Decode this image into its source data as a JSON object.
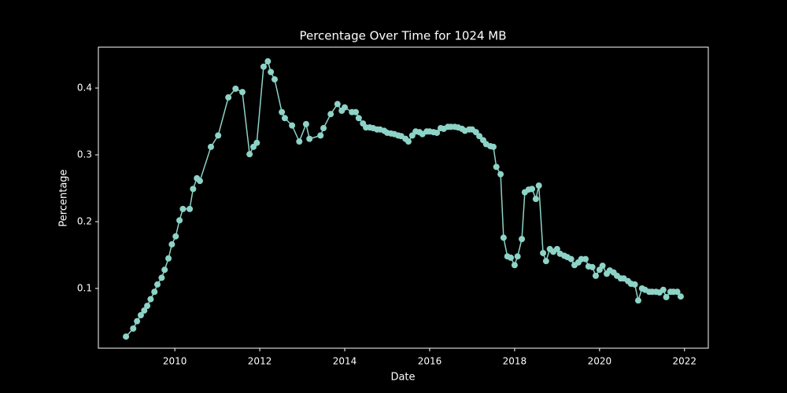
{
  "chart_data": {
    "type": "line",
    "title": "Percentage Over Time for 1024 MB",
    "x_label": "Date",
    "y_label": "Percentage",
    "x": [
      2008.85,
      2009.02,
      2009.11,
      2009.2,
      2009.28,
      2009.35,
      2009.43,
      2009.52,
      2009.59,
      2009.69,
      2009.76,
      2009.85,
      2009.93,
      2010.02,
      2010.11,
      2010.19,
      2010.35,
      2010.43,
      2010.52,
      2010.59,
      2010.85,
      2011.02,
      2011.26,
      2011.43,
      2011.59,
      2011.76,
      2011.85,
      2011.93,
      2012.09,
      2012.19,
      2012.26,
      2012.35,
      2012.52,
      2012.59,
      2012.76,
      2012.93,
      2013.09,
      2013.17,
      2013.43,
      2013.5,
      2013.67,
      2013.83,
      2013.93,
      2014.0,
      2014.17,
      2014.26,
      2014.33,
      2014.43,
      2014.5,
      2014.59,
      2014.67,
      2014.76,
      2014.83,
      2014.93,
      2015.0,
      2015.09,
      2015.17,
      2015.26,
      2015.33,
      2015.43,
      2015.5,
      2015.59,
      2015.67,
      2015.76,
      2015.83,
      2015.93,
      2016.0,
      2016.09,
      2016.17,
      2016.26,
      2016.33,
      2016.43,
      2016.5,
      2016.59,
      2016.67,
      2016.76,
      2016.83,
      2016.93,
      2017.0,
      2017.09,
      2017.17,
      2017.26,
      2017.33,
      2017.43,
      2017.5,
      2017.57,
      2017.67,
      2017.74,
      2017.83,
      2017.91,
      2018.0,
      2018.07,
      2018.17,
      2018.24,
      2018.33,
      2018.41,
      2018.5,
      2018.57,
      2018.67,
      2018.74,
      2018.83,
      2018.91,
      2019.0,
      2019.07,
      2019.17,
      2019.24,
      2019.33,
      2019.41,
      2019.5,
      2019.57,
      2019.67,
      2019.74,
      2019.83,
      2019.91,
      2020.0,
      2020.07,
      2020.17,
      2020.24,
      2020.33,
      2020.41,
      2020.5,
      2020.57,
      2020.67,
      2020.74,
      2020.83,
      2020.91,
      2021.0,
      2021.07,
      2021.17,
      2021.24,
      2021.33,
      2021.41,
      2021.5,
      2021.57,
      2021.67,
      2021.74,
      2021.83,
      2021.91
    ],
    "values": [
      0.028,
      0.04,
      0.051,
      0.06,
      0.067,
      0.074,
      0.084,
      0.095,
      0.106,
      0.116,
      0.128,
      0.145,
      0.166,
      0.178,
      0.202,
      0.219,
      0.219,
      0.249,
      0.265,
      0.261,
      0.312,
      0.329,
      0.386,
      0.399,
      0.394,
      0.301,
      0.312,
      0.318,
      0.432,
      0.44,
      0.424,
      0.413,
      0.364,
      0.355,
      0.344,
      0.32,
      0.346,
      0.324,
      0.329,
      0.34,
      0.361,
      0.376,
      0.366,
      0.371,
      0.364,
      0.364,
      0.355,
      0.347,
      0.341,
      0.341,
      0.34,
      0.338,
      0.338,
      0.336,
      0.333,
      0.332,
      0.331,
      0.329,
      0.328,
      0.324,
      0.32,
      0.329,
      0.335,
      0.334,
      0.331,
      0.335,
      0.335,
      0.334,
      0.333,
      0.34,
      0.339,
      0.342,
      0.342,
      0.342,
      0.341,
      0.339,
      0.336,
      0.338,
      0.338,
      0.334,
      0.328,
      0.322,
      0.316,
      0.313,
      0.312,
      0.282,
      0.271,
      0.176,
      0.148,
      0.146,
      0.135,
      0.148,
      0.174,
      0.244,
      0.248,
      0.249,
      0.234,
      0.254,
      0.153,
      0.141,
      0.159,
      0.155,
      0.159,
      0.152,
      0.149,
      0.147,
      0.144,
      0.135,
      0.139,
      0.144,
      0.144,
      0.133,
      0.132,
      0.119,
      0.128,
      0.134,
      0.122,
      0.127,
      0.124,
      0.119,
      0.115,
      0.115,
      0.111,
      0.107,
      0.106,
      0.082,
      0.1,
      0.098,
      0.095,
      0.095,
      0.095,
      0.094,
      0.098,
      0.087,
      0.095,
      0.095,
      0.095,
      0.088
    ],
    "color": "#8dd3c7",
    "xlim": [
      2008.2,
      2022.56
    ],
    "xticks": [
      2010,
      2012,
      2014,
      2016,
      2018,
      2020,
      2022
    ],
    "ylim": [
      0.0106,
      0.4612
    ],
    "yticks": [
      0.1,
      0.2,
      0.3,
      0.4
    ]
  }
}
